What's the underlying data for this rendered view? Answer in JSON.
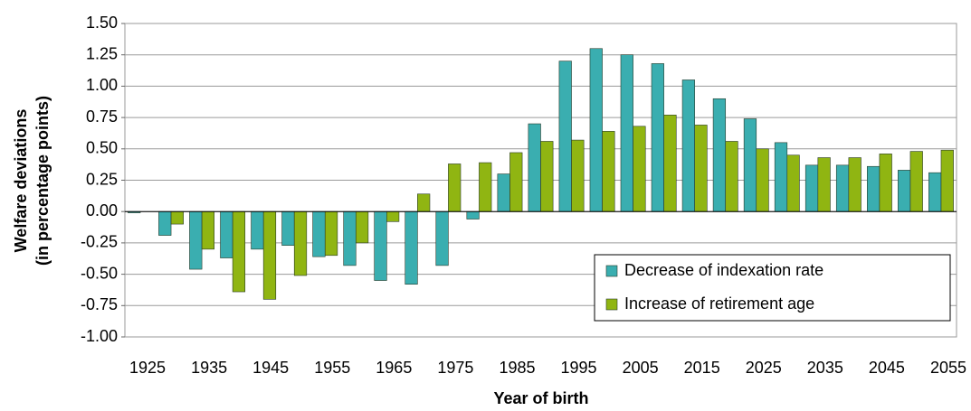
{
  "chart_data": {
    "type": "bar",
    "y_label": [
      "Welfare deviations",
      "(in percentage points)"
    ],
    "x_label": "Year of birth",
    "categories": [
      "1925",
      null,
      "1935",
      null,
      "1945",
      null,
      "1955",
      null,
      "1965",
      null,
      "1975",
      null,
      "1985",
      null,
      "1995",
      null,
      "2005",
      null,
      "2015",
      null,
      "2025",
      null,
      "2035",
      null,
      "2045",
      null,
      "2055"
    ],
    "series": [
      {
        "name": "Decrease of indexation rate",
        "color": "#3aaeb0",
        "values": [
          -0.01,
          -0.19,
          -0.46,
          -0.37,
          -0.3,
          -0.27,
          -0.36,
          -0.43,
          -0.55,
          -0.58,
          -0.43,
          -0.06,
          0.3,
          0.7,
          1.2,
          1.3,
          1.25,
          1.18,
          1.05,
          0.9,
          0.74,
          0.55,
          0.37,
          0.37,
          0.36,
          0.33,
          0.31
        ]
      },
      {
        "name": "Increase of retirement age",
        "color": "#90b512",
        "values": [
          0,
          -0.1,
          -0.3,
          -0.64,
          -0.7,
          -0.51,
          -0.35,
          -0.25,
          -0.08,
          0.14,
          0.38,
          0.39,
          0.47,
          0.56,
          0.57,
          0.64,
          0.68,
          0.77,
          0.69,
          0.56,
          0.5,
          0.45,
          0.43,
          0.43,
          0.46,
          0.48,
          0.49
        ]
      }
    ],
    "ylim": [
      -1,
      1.5
    ],
    "yticks": [
      {
        "value": -1,
        "label": "-1.00"
      },
      -0.75,
      {
        "value": -0.5,
        "label": "-0.50"
      },
      -0.25,
      {
        "value": 0,
        "label": "0.00"
      },
      0.25,
      {
        "value": 0.5,
        "label": "0.50"
      },
      0.75,
      {
        "value": 1,
        "label": "1.00"
      },
      1.25,
      {
        "value": 1.5,
        "label": "1.50"
      }
    ],
    "grid": true,
    "legend": "lower right"
  }
}
